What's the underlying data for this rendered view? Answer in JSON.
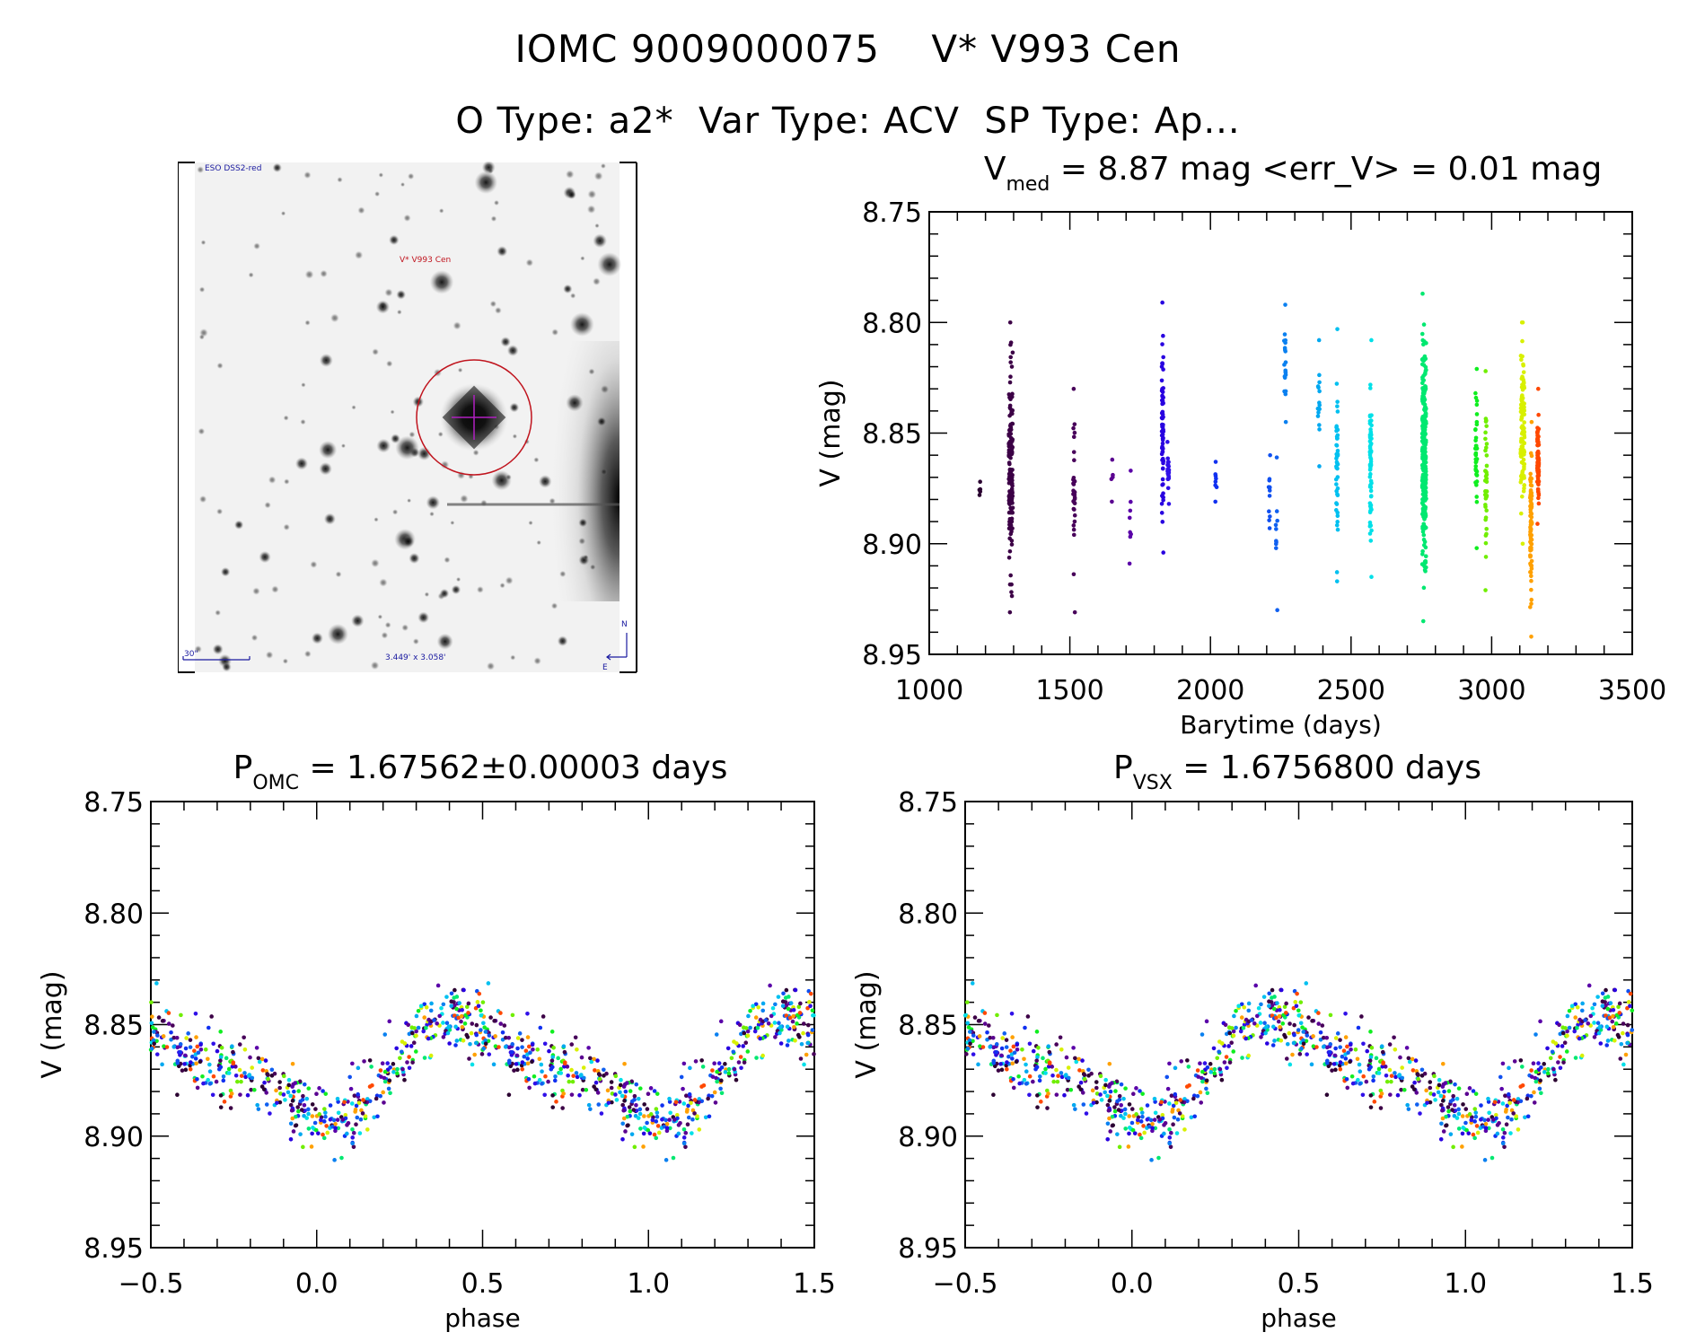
{
  "header": {
    "title_line1": "IOMC 9009000075    V* V993 Cen",
    "title_line2": "O Type: a2*  Var Type: ACV  SP Type: Ap..."
  },
  "finding_chart": {
    "survey_label": "ESO DSS2-red",
    "target_label": "V* V993 Cen",
    "scale_bar_label": "30\"",
    "field_size_label": "3.449' x 3.058'",
    "compass_north": "N",
    "compass_east": "E",
    "circle_color": "#c0141e",
    "crosshair_color": "#b020c0",
    "annotation_color": "#1a1aa0"
  },
  "chart_data": [
    {
      "id": "lightcurve",
      "type": "scatter",
      "title_main": "V",
      "title_sub": "med",
      "title_rest": " = 8.87 mag <err_V> = 0.01 mag",
      "xlabel": "Barytime (days)",
      "ylabel": "V (mag)",
      "xlim": [
        1000,
        3500
      ],
      "ylim": [
        8.95,
        8.75
      ],
      "y_inverted": true,
      "xticks": [
        1000,
        1500,
        2000,
        2500,
        3000,
        3500
      ],
      "xtick_labels": [
        "1000",
        "1500",
        "2000",
        "2500",
        "3000",
        "3500"
      ],
      "yticks": [
        8.75,
        8.8,
        8.85,
        8.9,
        8.95
      ],
      "ytick_labels": [
        "8.75",
        "8.80",
        "8.85",
        "8.90",
        "8.95"
      ],
      "grid": false,
      "legend": "none",
      "color_by": "time (rainbow: dark purple → red)",
      "observing_seasons": [
        {
          "t": 1180,
          "v_min": 8.872,
          "v_max": 8.878,
          "n": 5,
          "color": "#2a0030"
        },
        {
          "t": 1290,
          "v_min": 8.8,
          "v_max": 8.931,
          "n": 160,
          "color": "#3c0046"
        },
        {
          "t": 1515,
          "v_min": 8.83,
          "v_max": 8.931,
          "n": 30,
          "color": "#48005a"
        },
        {
          "t": 1650,
          "v_min": 8.862,
          "v_max": 8.881,
          "n": 5,
          "color": "#5a0090"
        },
        {
          "t": 1715,
          "v_min": 8.867,
          "v_max": 8.909,
          "n": 8,
          "color": "#5a00a8"
        },
        {
          "t": 1830,
          "v_min": 8.791,
          "v_max": 8.904,
          "n": 70,
          "color": "#2800e0"
        },
        {
          "t": 1850,
          "v_min": 8.854,
          "v_max": 8.882,
          "n": 20,
          "color": "#3010e8"
        },
        {
          "t": 2020,
          "v_min": 8.863,
          "v_max": 8.881,
          "n": 8,
          "color": "#1030f0"
        },
        {
          "t": 2210,
          "v_min": 8.86,
          "v_max": 8.893,
          "n": 12,
          "color": "#1050f0"
        },
        {
          "t": 2235,
          "v_min": 8.861,
          "v_max": 8.93,
          "n": 10,
          "color": "#1060f0"
        },
        {
          "t": 2265,
          "v_min": 8.792,
          "v_max": 8.845,
          "n": 20,
          "color": "#0a80f0"
        },
        {
          "t": 2385,
          "v_min": 8.808,
          "v_max": 8.865,
          "n": 15,
          "color": "#00a8f0"
        },
        {
          "t": 2450,
          "v_min": 8.803,
          "v_max": 8.917,
          "n": 45,
          "color": "#00c0f0"
        },
        {
          "t": 2570,
          "v_min": 8.808,
          "v_max": 8.915,
          "n": 70,
          "color": "#00e0e8"
        },
        {
          "t": 2760,
          "v_min": 8.787,
          "v_max": 8.935,
          "n": 300,
          "color": "#00e870"
        },
        {
          "t": 2945,
          "v_min": 8.821,
          "v_max": 8.902,
          "n": 40,
          "color": "#10ee20"
        },
        {
          "t": 2980,
          "v_min": 8.822,
          "v_max": 8.921,
          "n": 40,
          "color": "#70ee00"
        },
        {
          "t": 3110,
          "v_min": 8.8,
          "v_max": 8.9,
          "n": 120,
          "color": "#d8f000"
        },
        {
          "t": 3140,
          "v_min": 8.845,
          "v_max": 8.942,
          "n": 80,
          "color": "#ffa000"
        },
        {
          "t": 3165,
          "v_min": 8.83,
          "v_max": 8.891,
          "n": 80,
          "color": "#ff4800"
        }
      ]
    },
    {
      "id": "phase_omc",
      "type": "scatter",
      "title_main": "P",
      "title_sub": "OMC",
      "title_rest": " = 1.67562±0.00003 days",
      "xlabel": "phase",
      "ylabel": "V (mag)",
      "xlim": [
        -0.5,
        1.5
      ],
      "ylim": [
        8.95,
        8.75
      ],
      "y_inverted": true,
      "xticks": [
        -0.5,
        0.0,
        0.5,
        1.0,
        1.5
      ],
      "xtick_labels": [
        "−0.5",
        "0.0",
        "0.5",
        "1.0",
        "1.5"
      ],
      "yticks": [
        8.75,
        8.8,
        8.85,
        8.9,
        8.95
      ],
      "ytick_labels": [
        "8.75",
        "8.80",
        "8.85",
        "8.90",
        "8.95"
      ],
      "grid": false,
      "legend": "none",
      "period_days": 1.67562,
      "period_err_days": 3e-05,
      "light_curve_shape": {
        "mean_mag": 8.87,
        "maxima_phase": [
          -0.45,
          0.48,
          1.45
        ],
        "minima_phase": [
          0.0,
          1.0
        ],
        "secondary_minima_phase": [
          -0.22,
          0.78
        ],
        "bright_level_mag": 8.845,
        "faint_level_mag": 8.885,
        "scatter_mag": 0.02
      }
    },
    {
      "id": "phase_vsx",
      "type": "scatter",
      "title_main": "P",
      "title_sub": "VSX",
      "title_rest": " = 1.6756800 days",
      "xlabel": "phase",
      "ylabel": "V (mag)",
      "xlim": [
        -0.5,
        1.5
      ],
      "ylim": [
        8.95,
        8.75
      ],
      "y_inverted": true,
      "xticks": [
        -0.5,
        0.0,
        0.5,
        1.0,
        1.5
      ],
      "xtick_labels": [
        "−0.5",
        "0.0",
        "0.5",
        "1.0",
        "1.5"
      ],
      "yticks": [
        8.75,
        8.8,
        8.85,
        8.9,
        8.95
      ],
      "ytick_labels": [
        "8.75",
        "8.80",
        "8.85",
        "8.90",
        "8.95"
      ],
      "grid": false,
      "legend": "none",
      "period_days": 1.67568,
      "light_curve_shape": {
        "mean_mag": 8.87,
        "maxima_phase": [
          -0.45,
          0.48,
          1.45
        ],
        "minima_phase": [
          0.0,
          1.0
        ],
        "secondary_minima_phase": [
          -0.22,
          0.78
        ],
        "bright_level_mag": 8.845,
        "faint_level_mag": 8.885,
        "scatter_mag": 0.02
      }
    }
  ]
}
